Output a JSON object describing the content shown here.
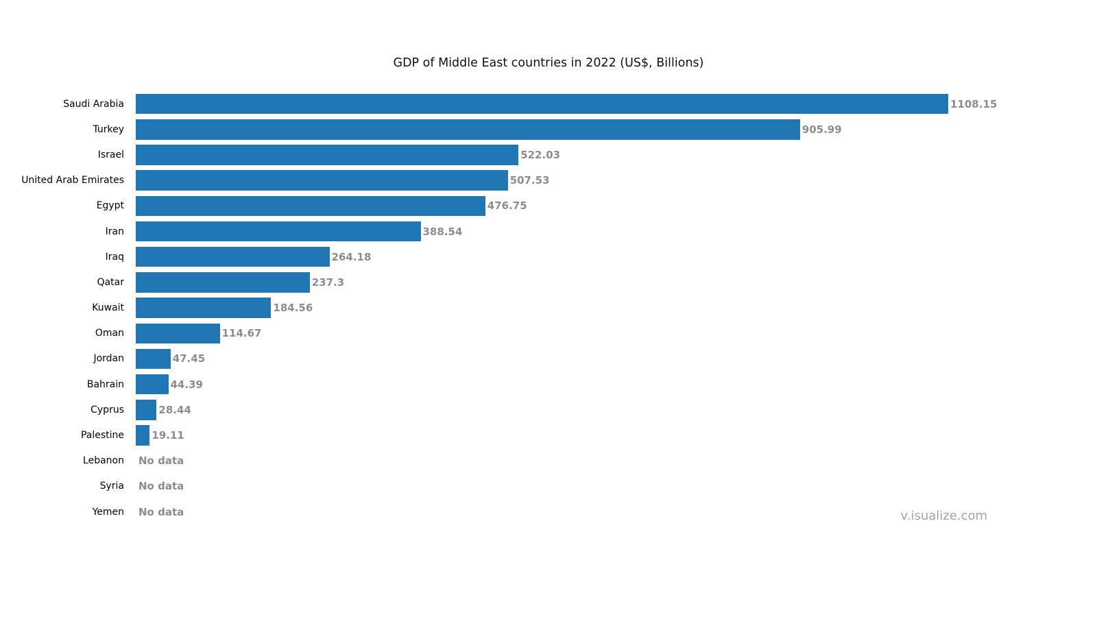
{
  "page": {
    "background_color": "#ffffff"
  },
  "chart_data": {
    "type": "bar",
    "orientation": "horizontal",
    "title": "GDP of Middle East countries in 2022 (US$, Billions)",
    "categories": [
      "Saudi Arabia",
      "Turkey",
      "Israel",
      "United Arab Emirates",
      "Egypt",
      "Iran",
      "Iraq",
      "Qatar",
      "Kuwait",
      "Oman",
      "Jordan",
      "Bahrain",
      "Cyprus",
      "Palestine",
      "Lebanon",
      "Syria",
      "Yemen"
    ],
    "values": [
      1108.15,
      905.99,
      522.03,
      507.53,
      476.75,
      388.54,
      264.18,
      237.3,
      184.56,
      114.67,
      47.45,
      44.39,
      28.44,
      19.11,
      null,
      null,
      null
    ],
    "value_labels": [
      "1108.15",
      "905.99",
      "522.03",
      "507.53",
      "476.75",
      "388.54",
      "264.18",
      "237.3",
      "184.56",
      "114.67",
      "47.45",
      "44.39",
      "28.44",
      "19.11",
      "No data",
      "No data",
      "No data"
    ],
    "no_data_label": "No data",
    "xlim": [
      0,
      1108.15
    ],
    "grid": false,
    "legend": false,
    "bar_color": "#2077b4",
    "category_label_color": "#000000",
    "value_label_color": "#8c8c8c"
  },
  "watermark": {
    "text": "v.isualize.com",
    "color": "#a3a3a3"
  }
}
